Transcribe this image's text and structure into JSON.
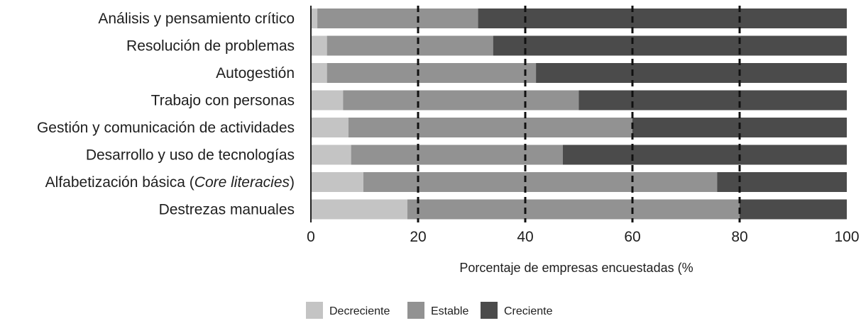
{
  "chart_data": {
    "type": "bar",
    "orientation": "horizontal",
    "stacked": true,
    "categories": [
      {
        "pre": "Análisis y pensamiento crítico",
        "italic": "",
        "post": ""
      },
      {
        "pre": "Resolución de problemas",
        "italic": "",
        "post": ""
      },
      {
        "pre": "Autogestión",
        "italic": "",
        "post": ""
      },
      {
        "pre": "Trabajo con personas",
        "italic": "",
        "post": ""
      },
      {
        "pre": "Gestión y comunicación de actividades",
        "italic": "",
        "post": ""
      },
      {
        "pre": "Desarrollo y uso de tecnologías",
        "italic": "",
        "post": ""
      },
      {
        "pre": "Alfabetización básica (",
        "italic": "Core literacies",
        "post": ")"
      },
      {
        "pre": "Destrezas manuales",
        "italic": "",
        "post": ""
      }
    ],
    "series": [
      {
        "name": "Decreciente",
        "color": "#c4c4c4",
        "values": [
          1.2,
          3,
          3,
          6,
          7,
          7.5,
          9.8,
          18
        ]
      },
      {
        "name": "Estable",
        "color": "#929292",
        "values": [
          30,
          31,
          39,
          44,
          53,
          39.5,
          66,
          62
        ]
      },
      {
        "name": "Creciente",
        "color": "#4b4b4b",
        "values": [
          68.8,
          66,
          58,
          50,
          40,
          53,
          24.2,
          20
        ]
      }
    ],
    "xlabel": "Porcentaje de empresas encuestadas (%",
    "xlim": [
      0,
      100
    ],
    "xticks": [
      0,
      20,
      40,
      60,
      80,
      100
    ],
    "gridlines": [
      20,
      40,
      60,
      80
    ],
    "grid_style": "dashed",
    "legend_position": "bottom"
  }
}
